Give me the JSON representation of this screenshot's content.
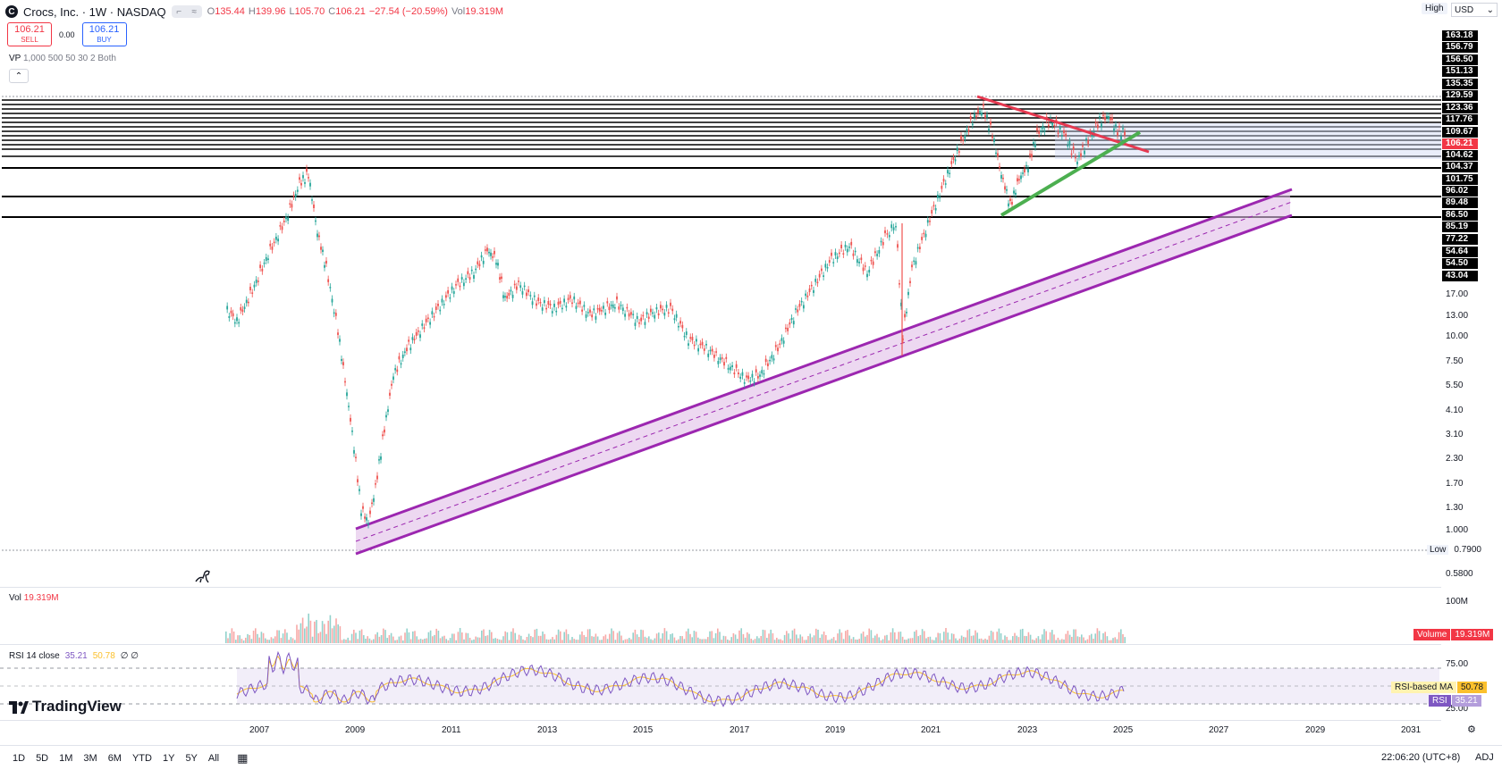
{
  "header": {
    "symbol": "Crocs, Inc. · 1W · NASDAQ",
    "ohlc": {
      "o_label": "O",
      "o": "135.44",
      "h_label": "H",
      "h": "139.96",
      "l_label": "L",
      "l": "105.70",
      "c_label": "C",
      "c": "106.21",
      "change": "−27.54 (−20.59%)",
      "vol_label": "Vol",
      "vol": "19.319M"
    }
  },
  "trade": {
    "sell_price": "106.21",
    "sell_label": "SELL",
    "spread": "0.00",
    "buy_price": "106.21",
    "buy_label": "BUY"
  },
  "indicator_vp": {
    "name": "VP",
    "params": "1,000 500 50 30 2 Both"
  },
  "top_right": {
    "high_button": "High",
    "currency": "USD"
  },
  "price_axis": {
    "labels": [
      "163.18",
      "156.79",
      "156.50",
      "151.13",
      "135.35",
      "129.59",
      "123.36",
      "117.76",
      "109.67",
      "106.21",
      "104.62",
      "104.37",
      "101.75",
      "96.02",
      "89.48",
      "86.50",
      "85.19",
      "77.22",
      "54.64",
      "54.50",
      "43.04",
      "17.00",
      "13.00",
      "10.00",
      "7.50",
      "5.50",
      "4.10",
      "3.10",
      "2.30",
      "1.70",
      "1.30",
      "1.000",
      "0.5800"
    ],
    "low_tag": "Low",
    "low_value": "0.7900"
  },
  "volume_pane": {
    "name": "Vol",
    "value": "19.319M",
    "axis_label": "100M",
    "badge_label": "Volume",
    "badge_value": "19.319M",
    "badge_color": "#f23645"
  },
  "rsi_pane": {
    "name": "RSI 14 close",
    "rsi": "35.21",
    "ma": "50.78",
    "extra": "∅ ∅",
    "axis_top": "75.00",
    "axis_bottom": "25.00",
    "ma_badge_label": "RSI-based MA",
    "ma_badge_value": "50.78",
    "rsi_badge_label": "RSI",
    "rsi_badge_value": "35.21",
    "rsi_color": "#7e57c2",
    "ma_color": "#fbc02d"
  },
  "brand": "TradingView",
  "time_axis": [
    "2007",
    "2009",
    "2011",
    "2013",
    "2015",
    "2017",
    "2019",
    "2021",
    "2023",
    "2025",
    "2027",
    "2029",
    "2031"
  ],
  "bottom_bar": {
    "ranges": [
      "1D",
      "5D",
      "1M",
      "3M",
      "6M",
      "YTD",
      "1Y",
      "5Y",
      "All"
    ],
    "clock": "22:06:20 (UTC+8)",
    "adj": "ADJ"
  },
  "colors": {
    "up": "#26a69a",
    "down": "#ef5350",
    "channel": "#9c27b0",
    "resistance": "#e53950",
    "support": "#4caf50"
  }
}
